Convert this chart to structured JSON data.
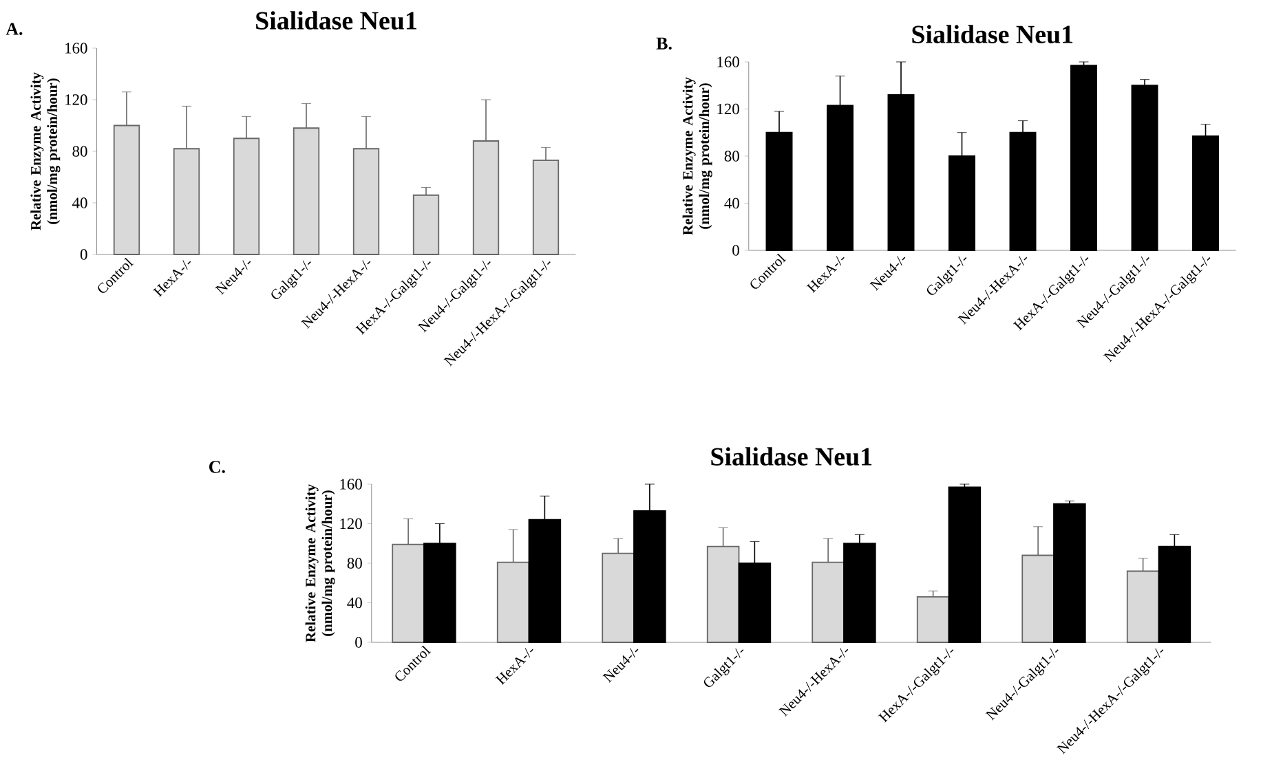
{
  "chart_data": [
    {
      "type": "bar",
      "title": "Sialidase Neu1",
      "ylabel": "Relative Enzyme Activity (nmol/mg protein/hour)",
      "annotations": [
        "A."
      ],
      "categories": [
        "Control",
        "HexA-/-",
        "Neu4-/-",
        "Galgt1-/-",
        "Neu4-/-HexA-/-",
        "HexA-/-Galgt1-/-",
        "Neu4-/-Galgt1-/-",
        "Neu4-/-HexA-/-Galgt1-/-"
      ],
      "values": [
        100,
        82,
        90,
        98,
        82,
        46,
        88,
        73
      ],
      "color": "#d9d9d9",
      "errors": [
        26,
        33,
        17,
        19,
        25,
        6,
        32,
        10
      ],
      "ylim": [
        0,
        160
      ],
      "yticks": [
        0,
        40,
        80,
        120,
        160
      ]
    },
    {
      "type": "bar",
      "title": "Sialidase Neu1",
      "ylabel": "Relative Enzyme Activity (nmol/mg protein/hour)",
      "annotations": [
        "B."
      ],
      "categories": [
        "Control",
        "HexA-/-",
        "Neu4-/-",
        "Galgt1-/-",
        "Neu4-/-HexA-/-",
        "HexA-/-Galgt1-/-",
        "Neu4-/-Galgt1-/-",
        "Neu4-/-HexA-/-Galgt1-/-"
      ],
      "values": [
        100,
        123,
        132,
        80,
        100,
        157,
        140,
        97
      ],
      "color": "#000000",
      "errors": [
        18,
        25,
        28,
        20,
        10,
        3,
        5,
        10
      ],
      "ylim": [
        0,
        160
      ],
      "yticks": [
        0,
        40,
        80,
        120,
        160
      ]
    },
    {
      "type": "bar",
      "title": "Sialidase Neu1",
      "ylabel": "Relative Enzyme Activity (nmol/mg protein/hour)",
      "annotations": [
        "C."
      ],
      "categories": [
        "Control",
        "HexA-/-",
        "Neu4-/-",
        "Galgt1-/-",
        "Neu4-/-HexA-/-",
        "HexA-/-Galgt1-/-",
        "Neu4-/-Galgt1-/-",
        "Neu4-/-HexA-/-Galgt1-/-"
      ],
      "series": [
        {
          "color": "#d9d9d9",
          "values": [
            99,
            81,
            90,
            97,
            81,
            46,
            88,
            72
          ],
          "errors": [
            26,
            33,
            15,
            19,
            24,
            6,
            29,
            13
          ]
        },
        {
          "color": "#000000",
          "values": [
            100,
            124,
            133,
            80,
            100,
            157,
            140,
            97
          ],
          "errors": [
            20,
            24,
            27,
            22,
            9,
            3,
            3,
            12
          ]
        }
      ],
      "ylim": [
        0,
        160
      ],
      "yticks": [
        0,
        40,
        80,
        120,
        160
      ]
    }
  ]
}
